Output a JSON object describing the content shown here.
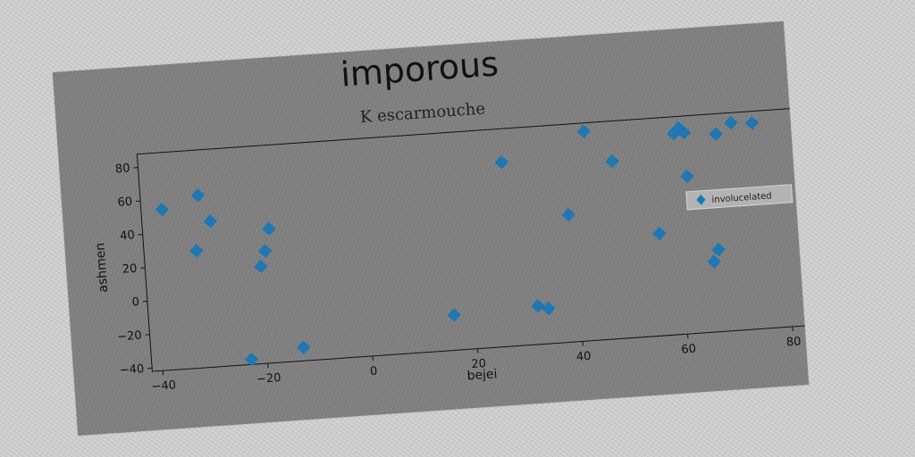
{
  "chart_data": {
    "type": "scatter",
    "title": "imporous",
    "subtitle": "K escarmouche",
    "xlabel": "bejei",
    "ylabel": "ashmen",
    "xlim": [
      -42,
      83
    ],
    "ylim": [
      -42,
      88
    ],
    "x_ticks": [
      -40,
      -20,
      0,
      20,
      40,
      60,
      80
    ],
    "x_tick_labels": [
      "−40",
      "−20",
      "0",
      "20",
      "40",
      "60",
      "80"
    ],
    "y_ticks": [
      -40,
      -20,
      0,
      20,
      40,
      60,
      80
    ],
    "y_tick_labels": [
      "−40",
      "−20",
      "0",
      "20",
      "40",
      "60",
      "80"
    ],
    "grid": false,
    "legend_position": "right",
    "series": [
      {
        "name": "involucelated",
        "color": "#1f77b4",
        "marker": "diamond-icon",
        "points": [
          [
            -38,
            54
          ],
          [
            -31,
            61
          ],
          [
            -29,
            45
          ],
          [
            -32,
            28
          ],
          [
            -18,
            38
          ],
          [
            -19,
            25
          ],
          [
            -20,
            16
          ],
          [
            -23,
            -39
          ],
          [
            -13,
            -34
          ],
          [
            16,
            -21
          ],
          [
            27,
            68
          ],
          [
            32,
            -19
          ],
          [
            34,
            -21
          ],
          [
            39,
            34
          ],
          [
            43,
            83
          ],
          [
            48,
            64
          ],
          [
            56,
            19
          ],
          [
            60,
            78
          ],
          [
            61,
            81
          ],
          [
            62,
            52
          ],
          [
            62,
            78
          ],
          [
            66,
            0
          ],
          [
            67,
            7
          ],
          [
            68,
            76
          ],
          [
            71,
            82
          ],
          [
            75,
            81
          ]
        ]
      }
    ]
  }
}
